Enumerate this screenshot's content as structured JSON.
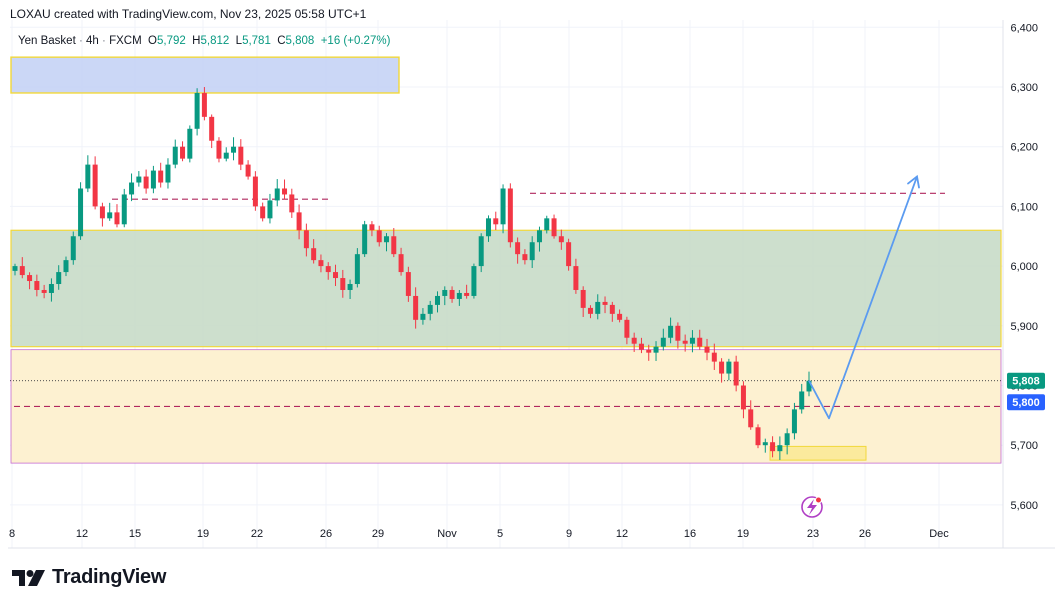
{
  "header": {
    "attribution": "LOXAU created with TradingView.com, Nov 23, 2025 05:58 UTC+1"
  },
  "legend": {
    "symbol": "Yen Basket",
    "interval": "4h",
    "exchange": "FXCM",
    "open_label": "O",
    "open": "5,792",
    "high_label": "H",
    "high": "5,812",
    "low_label": "L",
    "low": "5,781",
    "close_label": "C",
    "close": "5,808",
    "change": "+16 (+0.27%)"
  },
  "brand": {
    "name": "TradingView",
    "logo_icon": "tradingview-logo-icon"
  },
  "colors": {
    "up": "#089981",
    "down": "#f23645",
    "grid": "#f0f3fa",
    "supply_zone": "#c5d3f5",
    "supply_border": "#f2d83b",
    "range_zone": "#c8dcc8",
    "demand_zone": "#fdf0cf",
    "demand_border": "#c56bd1",
    "target_dash": "#b0285f",
    "projection": "#5b9bf0",
    "price_tag": "#089981",
    "level_tag": "#2962ff"
  },
  "chart_data": {
    "type": "candlestick",
    "title": "Yen Basket · 4h · FXCM",
    "ylim": [
      5590,
      6410
    ],
    "y_ticks": [
      5600,
      5700,
      5800,
      5900,
      6000,
      6100,
      6200,
      6300,
      6400
    ],
    "y_tick_labels": [
      "5,600",
      "5,700",
      "5,800",
      "5,900",
      "6,000",
      "6,100",
      "6,200",
      "6,300",
      "6,400"
    ],
    "x_tick_labels": [
      "8",
      "12",
      "15",
      "19",
      "22",
      "26",
      "29",
      "Nov",
      "5",
      "9",
      "12",
      "16",
      "19",
      "23",
      "26",
      "Dec"
    ],
    "grid": true,
    "last_price": {
      "value": 5808,
      "label": "5,808"
    },
    "level_marker": {
      "value": 5800,
      "label": "5,800"
    },
    "zones": [
      {
        "name": "supply-zone",
        "low": 6290,
        "high": 6350
      },
      {
        "name": "range-zone",
        "low": 5865,
        "high": 6060
      },
      {
        "name": "demand-zone",
        "low": 5670,
        "high": 5860
      },
      {
        "name": "small-demand-box",
        "low": 5675,
        "high": 5698
      }
    ],
    "levels": [
      {
        "name": "upper-target-line",
        "value": 6122
      },
      {
        "name": "left-mid-line",
        "value": 6112
      },
      {
        "name": "current-level-line",
        "value": 5765
      }
    ],
    "projection": [
      5808,
      5745,
      6150
    ],
    "closes": [
      6000,
      5985,
      5975,
      5960,
      5955,
      5970,
      5990,
      6010,
      6050,
      6130,
      6170,
      6100,
      6080,
      6090,
      6070,
      6120,
      6140,
      6150,
      6130,
      6160,
      6140,
      6170,
      6200,
      6180,
      6230,
      6290,
      6250,
      6210,
      6180,
      6190,
      6200,
      6170,
      6150,
      6100,
      6080,
      6110,
      6130,
      6120,
      6090,
      6060,
      6030,
      6010,
      6000,
      5990,
      5980,
      5960,
      5970,
      6020,
      6070,
      6060,
      6040,
      6050,
      6020,
      5990,
      5950,
      5910,
      5920,
      5935,
      5950,
      5960,
      5945,
      5955,
      5950,
      6000,
      6050,
      6080,
      6070,
      6130,
      6040,
      6020,
      6010,
      6040,
      6060,
      6080,
      6050,
      6040,
      6000,
      5960,
      5930,
      5920,
      5940,
      5935,
      5920,
      5910,
      5880,
      5870,
      5860,
      5855,
      5865,
      5880,
      5900,
      5875,
      5870,
      5880,
      5865,
      5855,
      5840,
      5820,
      5840,
      5800,
      5760,
      5730,
      5700,
      5705,
      5690,
      5700,
      5720,
      5760,
      5790,
      5808
    ]
  }
}
